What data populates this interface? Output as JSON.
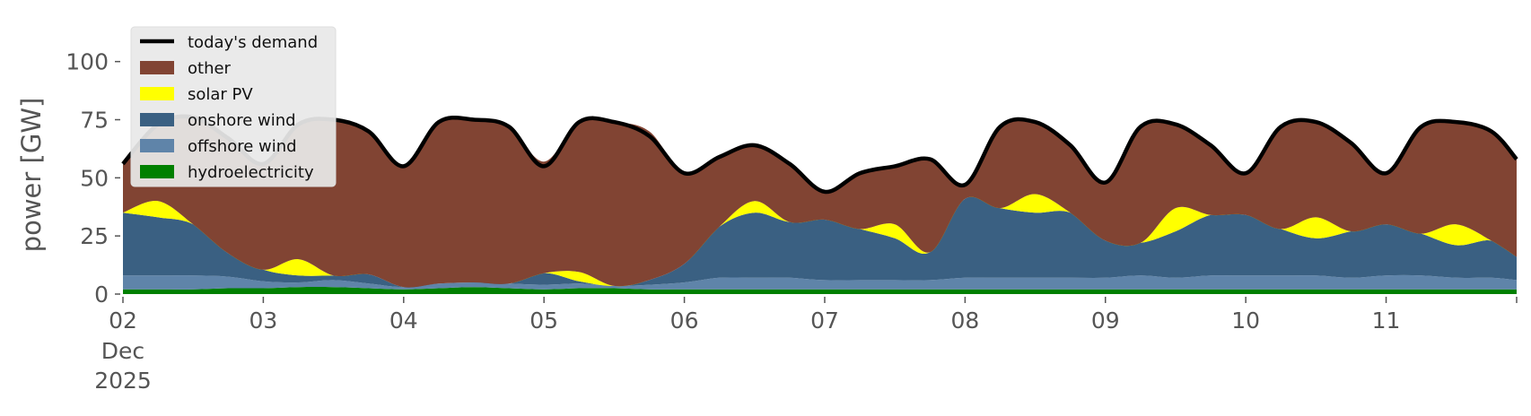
{
  "chart_data": {
    "type": "area",
    "ylabel": "power [GW]",
    "ylim": [
      0,
      118
    ],
    "xlim": [
      0,
      9.93
    ],
    "grid": false,
    "legend_position": "top-left",
    "yticks": [
      0,
      25,
      50,
      75,
      100
    ],
    "xticks": [
      {
        "x": 0,
        "label": "02",
        "sublabels": [
          "Dec",
          "2025"
        ]
      },
      {
        "x": 1,
        "label": "03"
      },
      {
        "x": 2,
        "label": "04"
      },
      {
        "x": 3,
        "label": "05"
      },
      {
        "x": 4,
        "label": "06"
      },
      {
        "x": 5,
        "label": "07"
      },
      {
        "x": 6,
        "label": "08"
      },
      {
        "x": 7,
        "label": "09"
      },
      {
        "x": 8,
        "label": "10"
      },
      {
        "x": 9,
        "label": "11"
      }
    ],
    "x": [
      0,
      0.25,
      0.5,
      0.75,
      1,
      1.25,
      1.5,
      1.75,
      2,
      2.25,
      2.5,
      2.75,
      3,
      3.25,
      3.5,
      3.75,
      4,
      4.25,
      4.5,
      4.75,
      5,
      5.25,
      5.5,
      5.75,
      6,
      6.25,
      6.5,
      6.75,
      7,
      7.25,
      7.5,
      7.75,
      8,
      8.25,
      8.5,
      8.75,
      9,
      9.25,
      9.5,
      9.75,
      9.93
    ],
    "demand": {
      "name": "today's demand",
      "color": "#000000",
      "values": [
        56,
        73,
        76,
        67,
        56,
        73,
        75,
        70,
        55,
        74,
        75,
        72,
        55,
        74,
        74,
        68,
        52,
        59,
        64,
        56,
        44,
        52,
        55,
        58,
        47,
        72,
        74,
        64,
        48,
        72,
        73,
        64,
        52,
        72,
        74,
        65,
        52,
        72,
        74,
        70,
        58
      ]
    },
    "series": [
      {
        "name": "hydroelectricity",
        "color": "#008000",
        "values": [
          2,
          2,
          2,
          2.5,
          2.5,
          3,
          3,
          2.5,
          2,
          2.5,
          3,
          2.5,
          2,
          2.5,
          2.5,
          2,
          2,
          2,
          2,
          2,
          2,
          2,
          2,
          2,
          2,
          2,
          2,
          2,
          2,
          2,
          2,
          2,
          2,
          2,
          2,
          2,
          2,
          2,
          2,
          2,
          2
        ]
      },
      {
        "name": "offshore wind",
        "color": "#5f84a9",
        "values": [
          6,
          6,
          6,
          5,
          3,
          2,
          3,
          2,
          1,
          2,
          2,
          2,
          2,
          2,
          1,
          2,
          3,
          5,
          5,
          5,
          4,
          4,
          4,
          4,
          5,
          5,
          5,
          5,
          5,
          6,
          5,
          6,
          6,
          6,
          6,
          5,
          6,
          6,
          5,
          5,
          4
        ]
      },
      {
        "name": "onshore wind",
        "color": "#3a6082",
        "values": [
          27,
          25,
          22,
          10,
          5,
          3,
          2,
          4,
          0,
          0,
          0,
          0,
          5,
          1,
          0,
          2,
          8,
          22,
          28,
          24,
          26,
          22,
          18,
          12,
          34,
          30,
          28,
          28,
          16,
          14,
          20,
          26,
          26,
          20,
          16,
          20,
          22,
          18,
          14,
          16,
          10
        ]
      },
      {
        "name": "solar PV",
        "color": "#ffff00",
        "values": [
          0,
          7,
          0,
          0,
          0,
          7,
          0,
          0,
          0,
          0,
          0,
          0,
          0,
          4,
          0,
          0,
          0,
          0,
          5,
          0,
          0,
          0,
          6,
          0,
          0,
          0,
          8,
          0,
          0,
          0,
          10,
          0,
          0,
          0,
          9,
          0,
          0,
          0,
          9,
          0,
          0
        ]
      },
      {
        "name": "other",
        "color": "#814433",
        "values": [
          21,
          33,
          46,
          49.5,
          45.5,
          58,
          67,
          61.5,
          52,
          69.5,
          70,
          67.5,
          48,
          64.5,
          70.5,
          64,
          39,
          30,
          24,
          25,
          12,
          24,
          25,
          40,
          6,
          35,
          31,
          29,
          25,
          50,
          36,
          30,
          18,
          44,
          41,
          38,
          22,
          46,
          44,
          47,
          42
        ]
      }
    ]
  }
}
